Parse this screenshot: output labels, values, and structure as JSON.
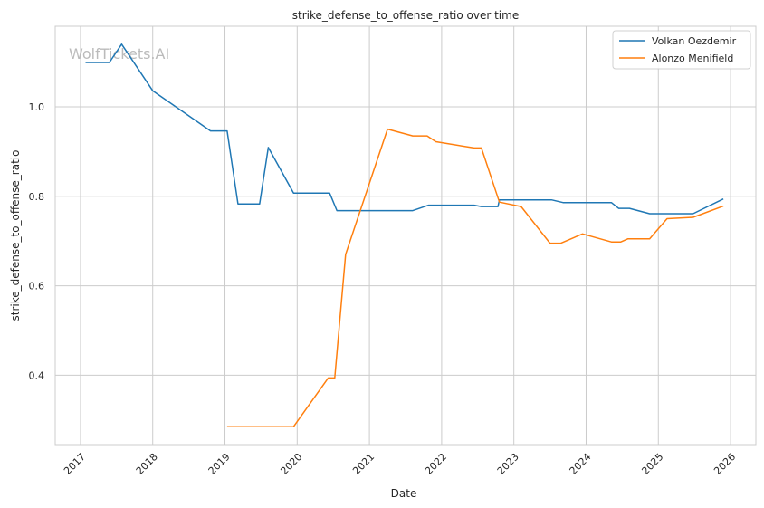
{
  "watermark": "WolfTickets.AI",
  "chart_data": {
    "type": "line",
    "title": "strike_defense_to_offense_ratio over time",
    "xlabel": "Date",
    "ylabel": "strike_defense_to_offense_ratio",
    "x_ticks": [
      "2017",
      "2018",
      "2019",
      "2020",
      "2021",
      "2022",
      "2023",
      "2024",
      "2025",
      "2026"
    ],
    "y_ticks": [
      "0.4",
      "0.6",
      "0.8",
      "1.0"
    ],
    "ylim": [
      0.245,
      1.18
    ],
    "xlim": [
      2016.65,
      2026.35
    ],
    "grid": true,
    "legend_position": "top-right",
    "series": [
      {
        "name": "Volkan Oezdemir",
        "color": "#1f77b4",
        "x": [
          2017.07,
          2017.4,
          2017.57,
          2018.0,
          2018.8,
          2019.03,
          2019.18,
          2019.48,
          2019.6,
          2019.95,
          2020.45,
          2020.55,
          2021.0,
          2021.6,
          2021.82,
          2022.0,
          2022.45,
          2022.55,
          2022.78,
          2022.8,
          2023.0,
          2023.52,
          2023.68,
          2024.0,
          2024.35,
          2024.45,
          2024.6,
          2024.88,
          2025.0,
          2025.48,
          2025.9
        ],
        "y": [
          1.099,
          1.099,
          1.14,
          1.036,
          0.946,
          0.946,
          0.783,
          0.783,
          0.909,
          0.807,
          0.807,
          0.768,
          0.768,
          0.768,
          0.78,
          0.78,
          0.78,
          0.777,
          0.777,
          0.792,
          0.792,
          0.792,
          0.786,
          0.786,
          0.786,
          0.773,
          0.773,
          0.761,
          0.761,
          0.761,
          0.794
        ]
      },
      {
        "name": "Alonzo Menifield",
        "color": "#ff7f0e",
        "x": [
          2019.03,
          2019.95,
          2020.43,
          2020.52,
          2020.67,
          2021.25,
          2021.6,
          2021.8,
          2021.92,
          2022.45,
          2022.55,
          2022.8,
          2023.1,
          2023.5,
          2023.65,
          2023.95,
          2024.35,
          2024.48,
          2024.58,
          2024.88,
          2025.12,
          2025.48,
          2025.9
        ],
        "y": [
          0.285,
          0.285,
          0.394,
          0.394,
          0.67,
          0.95,
          0.935,
          0.935,
          0.922,
          0.908,
          0.908,
          0.787,
          0.777,
          0.695,
          0.695,
          0.716,
          0.698,
          0.698,
          0.705,
          0.705,
          0.75,
          0.753,
          0.778
        ]
      }
    ]
  }
}
